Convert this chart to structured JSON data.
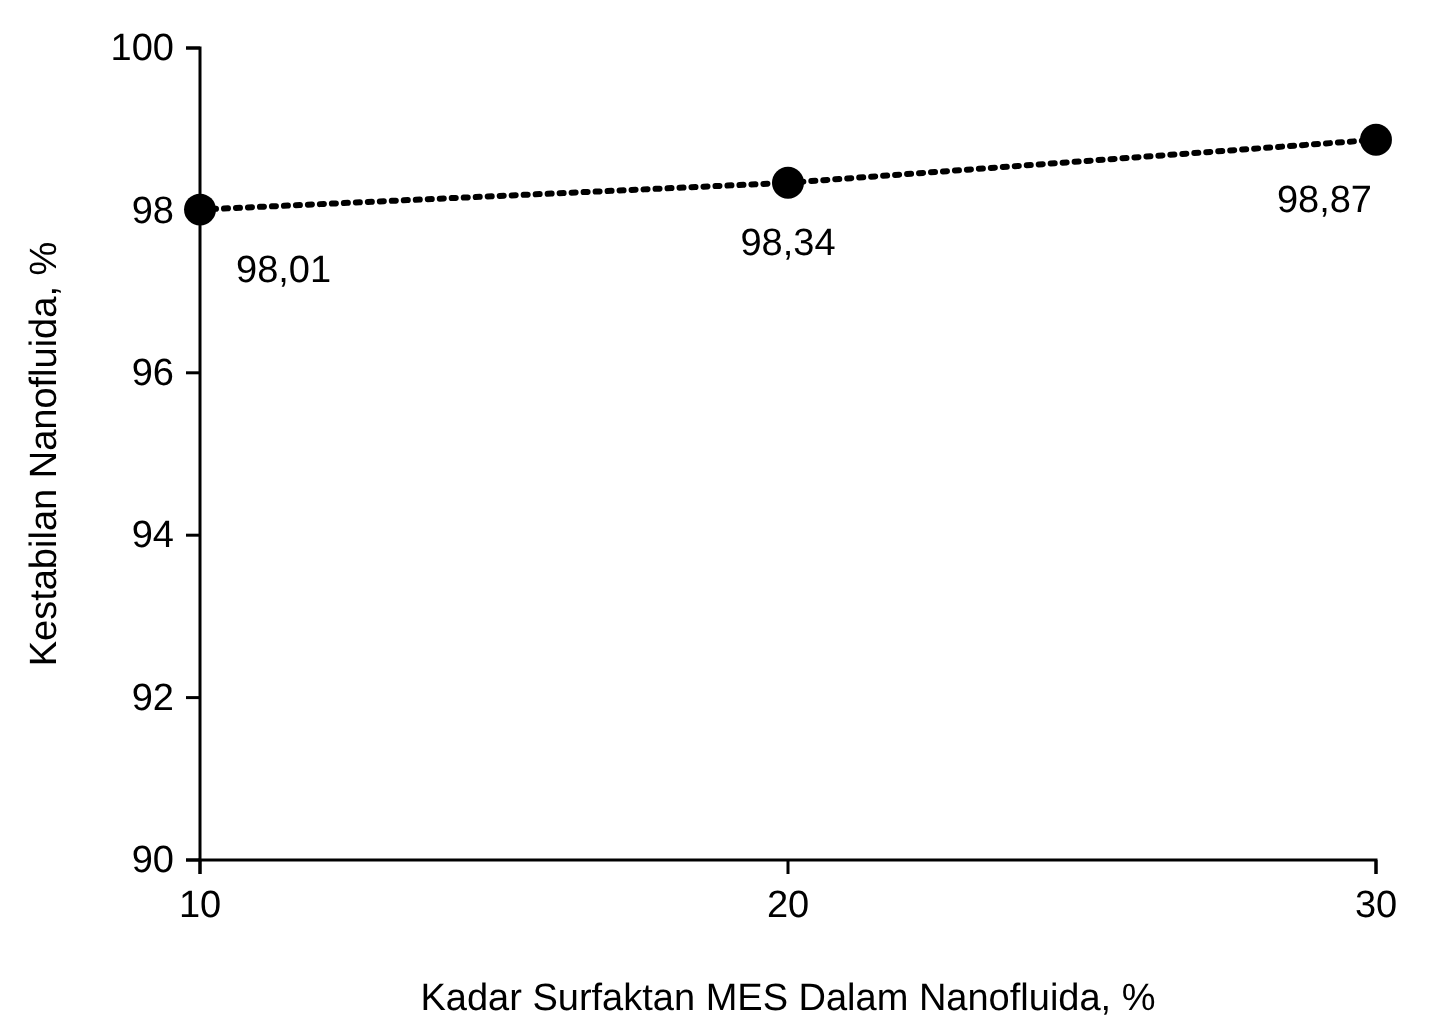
{
  "chart_data": {
    "type": "line",
    "xlabel": "Kadar Surfaktan MES Dalam Nanofluida, %",
    "ylabel": "Kestabilan Nanofluida, %",
    "x": [
      10,
      20,
      30
    ],
    "series": [
      {
        "color": "#000000",
        "values": [
          98.01,
          98.34,
          98.87
        ],
        "value_labels": [
          "98,01",
          "98,34",
          "98,87"
        ]
      }
    ],
    "xlim": [
      10,
      30
    ],
    "xticks": [
      10,
      20,
      30
    ],
    "ylim": [
      90,
      100
    ],
    "yticks": [
      90,
      92,
      94,
      96,
      98,
      100
    ],
    "marker": "circle",
    "line_style": "dotted"
  }
}
